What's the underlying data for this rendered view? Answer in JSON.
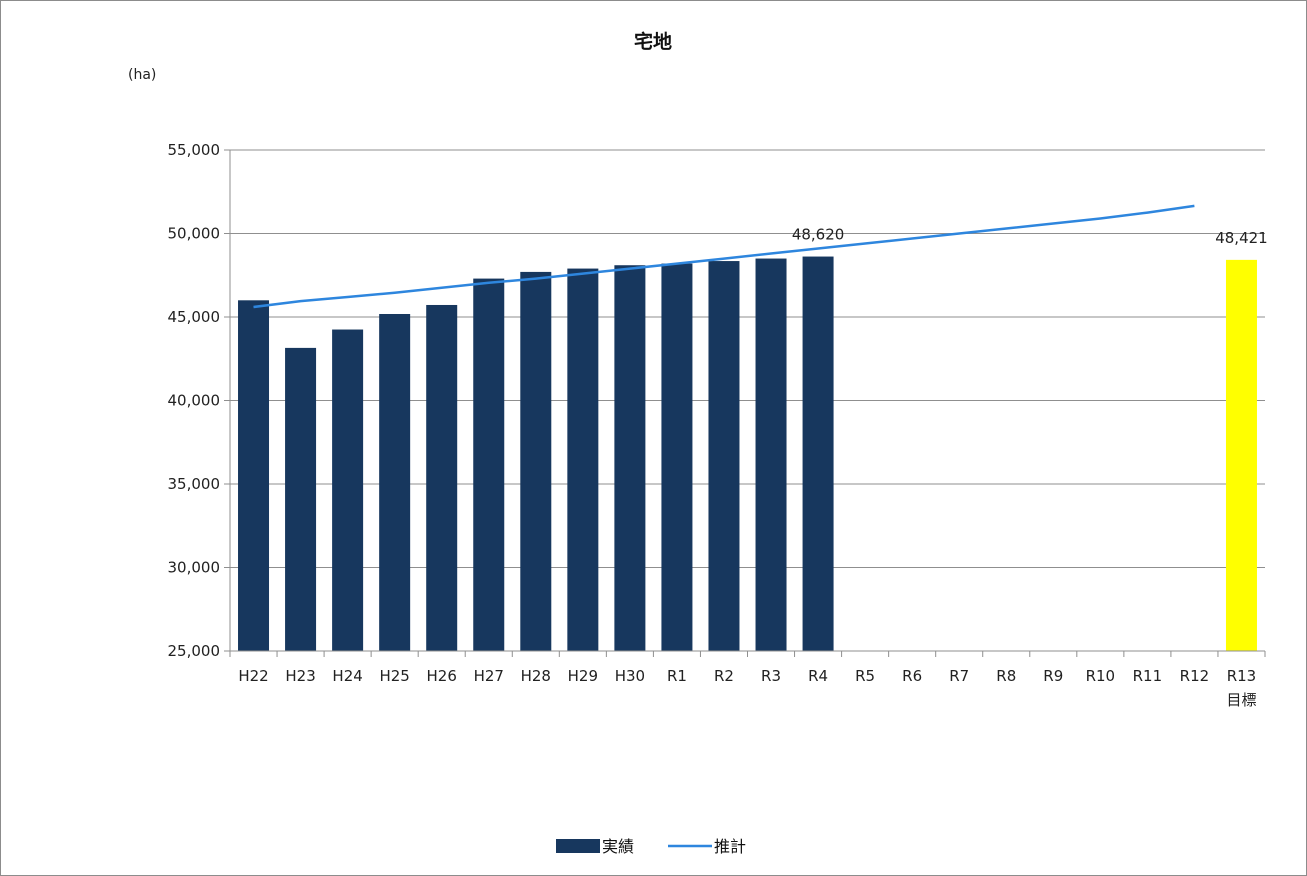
{
  "chart_data": {
    "type": "bar",
    "title": "宅地",
    "unit_label": "(ha)",
    "categories": [
      "H22",
      "H23",
      "H24",
      "H25",
      "H26",
      "H27",
      "H28",
      "H29",
      "H30",
      "R1",
      "R2",
      "R3",
      "R4",
      "R5",
      "R6",
      "R7",
      "R8",
      "R9",
      "R10",
      "R11",
      "R12",
      "R13"
    ],
    "category_sublabels": {
      "R13": "目標"
    },
    "ylim": [
      25000,
      55000
    ],
    "yticks": [
      25000,
      30000,
      35000,
      40000,
      45000,
      50000,
      55000
    ],
    "ytick_labels": [
      "25,000",
      "30,000",
      "35,000",
      "40,000",
      "45,000",
      "50,000",
      "55,000"
    ],
    "grid": true,
    "legend_position": "bottom",
    "series": [
      {
        "name": "実績",
        "type": "bar",
        "color": "#17375e",
        "values": [
          46000,
          43150,
          44250,
          45180,
          45720,
          47300,
          47700,
          47900,
          48100,
          48200,
          48350,
          48500,
          48620,
          null,
          null,
          null,
          null,
          null,
          null,
          null,
          null,
          null
        ]
      },
      {
        "name": "目標",
        "type": "bar",
        "color": "#ffff00",
        "show_in_legend": false,
        "values": [
          null,
          null,
          null,
          null,
          null,
          null,
          null,
          null,
          null,
          null,
          null,
          null,
          null,
          null,
          null,
          null,
          null,
          null,
          null,
          null,
          null,
          48421
        ]
      },
      {
        "name": "推計",
        "type": "line",
        "color": "#2e86de",
        "values": [
          45600,
          45950,
          46200,
          46450,
          46750,
          47050,
          47300,
          47600,
          47900,
          48200,
          48500,
          48800,
          49100,
          49400,
          49700,
          50000,
          50300,
          50600,
          50900,
          51250,
          51650,
          null
        ]
      }
    ],
    "data_labels": [
      {
        "category": "R4",
        "text": "48,620"
      },
      {
        "category": "R13",
        "text": "48,421"
      }
    ]
  }
}
